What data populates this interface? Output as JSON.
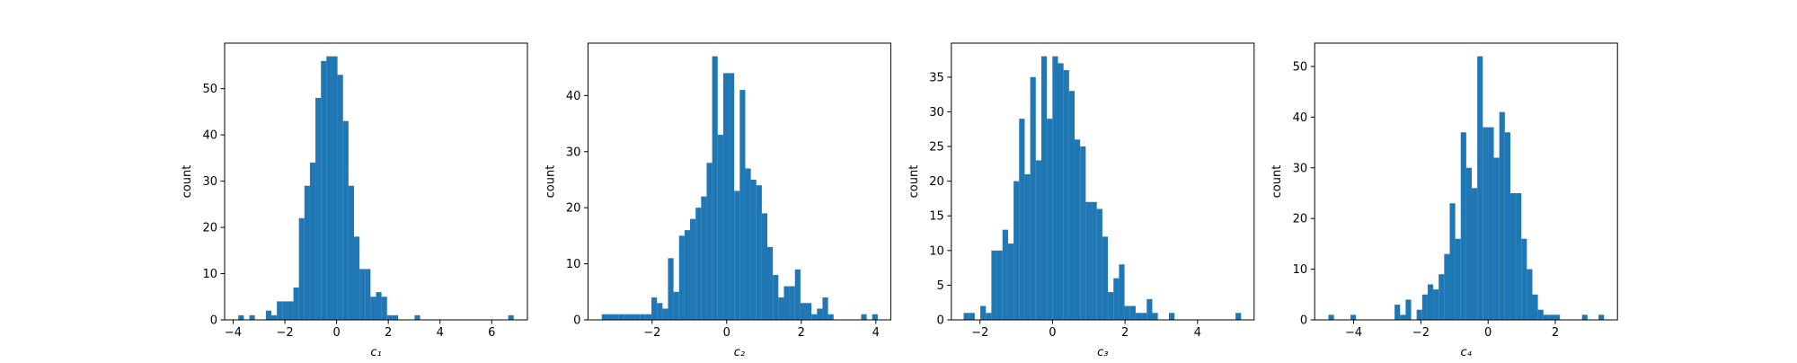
{
  "chart_data": [
    {
      "type": "histogram",
      "xlabel": "c₁",
      "ylabel": "count",
      "color": "#1f77b4",
      "bins": [
        -3.8,
        -3.587,
        -3.374,
        -3.161,
        -2.948,
        -2.735,
        -2.522,
        -2.309,
        -2.096,
        -1.883,
        -1.67,
        -1.457,
        -1.244,
        -1.031,
        -0.818,
        -0.605,
        -0.392,
        -0.179,
        0.034,
        0.247,
        0.46,
        0.673,
        0.886,
        1.099,
        1.312,
        1.525,
        1.738,
        1.951,
        2.164,
        2.377,
        2.59,
        2.803,
        3.016,
        3.229,
        3.442,
        3.655,
        3.868,
        4.081,
        4.294,
        4.507,
        4.72,
        4.933,
        5.146,
        5.359,
        5.572,
        5.785,
        5.998,
        6.211,
        6.424,
        6.637,
        6.85
      ],
      "values": [
        1,
        0,
        1,
        0,
        0,
        2,
        1,
        4,
        4,
        4,
        7,
        22,
        29,
        34,
        48,
        56,
        57,
        57,
        53,
        43,
        29,
        18,
        11,
        11,
        5,
        6,
        5,
        1,
        1,
        0,
        0,
        0,
        1,
        0,
        0,
        0,
        0,
        0,
        0,
        0,
        0,
        0,
        0,
        0,
        0,
        0,
        0,
        0,
        0,
        1
      ],
      "xlim": [
        -4.33,
        7.38
      ],
      "ylim": [
        0,
        59.85
      ],
      "xticks": [
        {
          "value": -4,
          "label": "−4"
        },
        {
          "value": -2,
          "label": "−2"
        },
        0,
        2,
        4,
        6
      ],
      "yticks": [
        0,
        10,
        20,
        30,
        40,
        50
      ]
    },
    {
      "type": "histogram",
      "xlabel": "c₂",
      "ylabel": "count",
      "color": "#1f77b4",
      "bins": [
        -3.35,
        -3.202,
        -3.054,
        -2.906,
        -2.758,
        -2.61,
        -2.462,
        -2.314,
        -2.166,
        -2.018,
        -1.87,
        -1.722,
        -1.574,
        -1.426,
        -1.278,
        -1.13,
        -0.982,
        -0.834,
        -0.686,
        -0.538,
        -0.39,
        -0.242,
        -0.094,
        0.054,
        0.202,
        0.35,
        0.498,
        0.646,
        0.794,
        0.942,
        1.09,
        1.238,
        1.386,
        1.534,
        1.682,
        1.83,
        1.978,
        2.126,
        2.274,
        2.422,
        2.57,
        2.718,
        2.866,
        3.014,
        3.162,
        3.31,
        3.458,
        3.606,
        3.754,
        3.902,
        4.05
      ],
      "values": [
        1,
        1,
        1,
        1,
        1,
        1,
        1,
        1,
        1,
        4,
        3,
        2,
        11,
        5,
        15,
        16,
        18,
        20,
        22,
        28,
        47,
        33,
        44,
        44,
        23,
        41,
        27,
        25,
        24,
        19,
        13,
        8,
        4,
        6,
        6,
        9,
        3,
        3,
        1,
        2,
        4,
        1,
        0,
        0,
        0,
        0,
        0,
        1,
        0,
        1
      ],
      "xlim": [
        -3.72,
        4.4
      ],
      "ylim": [
        0,
        49.35
      ],
      "xticks": [
        {
          "value": -2,
          "label": "−2"
        },
        0,
        2,
        4
      ],
      "yticks": [
        0,
        10,
        20,
        30,
        40
      ]
    },
    {
      "type": "histogram",
      "xlabel": "c₃",
      "ylabel": "count",
      "color": "#1f77b4",
      "bins": [
        -2.45,
        -2.297,
        -2.144,
        -1.991,
        -1.838,
        -1.685,
        -1.532,
        -1.379,
        -1.226,
        -1.073,
        -0.92,
        -0.767,
        -0.614,
        -0.461,
        -0.308,
        -0.155,
        -0.002,
        0.151,
        0.304,
        0.457,
        0.61,
        0.763,
        0.916,
        1.069,
        1.222,
        1.375,
        1.528,
        1.681,
        1.834,
        1.987,
        2.14,
        2.293,
        2.446,
        2.599,
        2.752,
        2.905,
        3.058,
        3.211,
        3.364,
        3.517,
        3.67,
        3.823,
        3.976,
        4.129,
        4.282,
        4.435,
        4.588,
        4.741,
        4.894,
        5.047,
        5.2
      ],
      "values": [
        1,
        1,
        0,
        2,
        1,
        10,
        10,
        13,
        11,
        20,
        29,
        21,
        35,
        23,
        38,
        29,
        38,
        37,
        36,
        33,
        26,
        25,
        17,
        17,
        16,
        12,
        4,
        6,
        8,
        2,
        2,
        1,
        1,
        3,
        1,
        0,
        0,
        1,
        0,
        0,
        0,
        0,
        0,
        0,
        0,
        0,
        0,
        0,
        0,
        1
      ],
      "xlim": [
        -2.79,
        5.56
      ],
      "ylim": [
        0,
        39.9
      ],
      "xticks": [
        {
          "value": -2,
          "label": "−2"
        },
        0,
        2,
        4
      ],
      "yticks": [
        0,
        5,
        10,
        15,
        20,
        25,
        30,
        35
      ]
    },
    {
      "type": "histogram",
      "xlabel": "c₄",
      "ylabel": "count",
      "color": "#1f77b4",
      "bins": [
        -4.75,
        -4.586,
        -4.422,
        -4.258,
        -4.094,
        -3.93,
        -3.766,
        -3.602,
        -3.438,
        -3.274,
        -3.11,
        -2.946,
        -2.782,
        -2.618,
        -2.454,
        -2.29,
        -2.126,
        -1.962,
        -1.798,
        -1.634,
        -1.47,
        -1.306,
        -1.142,
        -0.978,
        -0.814,
        -0.65,
        -0.486,
        -0.322,
        -0.158,
        0.006,
        0.17,
        0.334,
        0.498,
        0.662,
        0.826,
        0.99,
        1.154,
        1.318,
        1.482,
        1.646,
        1.81,
        1.974,
        2.138,
        2.302,
        2.466,
        2.63,
        2.794,
        2.958,
        3.122,
        3.286,
        3.45
      ],
      "values": [
        1,
        0,
        0,
        0,
        1,
        0,
        0,
        0,
        0,
        0,
        0,
        0,
        3,
        1,
        4,
        0,
        2,
        5,
        7,
        6,
        9,
        13,
        23,
        16,
        37,
        30,
        26,
        52,
        38,
        38,
        32,
        41,
        37,
        25,
        25,
        16,
        10,
        5,
        2,
        1,
        1,
        1,
        0,
        0,
        0,
        0,
        1,
        0,
        0,
        1
      ],
      "xlim": [
        -5.16,
        3.85
      ],
      "ylim": [
        0,
        54.6
      ],
      "xticks": [
        {
          "value": -4,
          "label": "−4"
        },
        {
          "value": -2,
          "label": "−2"
        },
        0,
        2
      ],
      "yticks": [
        0,
        10,
        20,
        30,
        40,
        50
      ]
    }
  ]
}
